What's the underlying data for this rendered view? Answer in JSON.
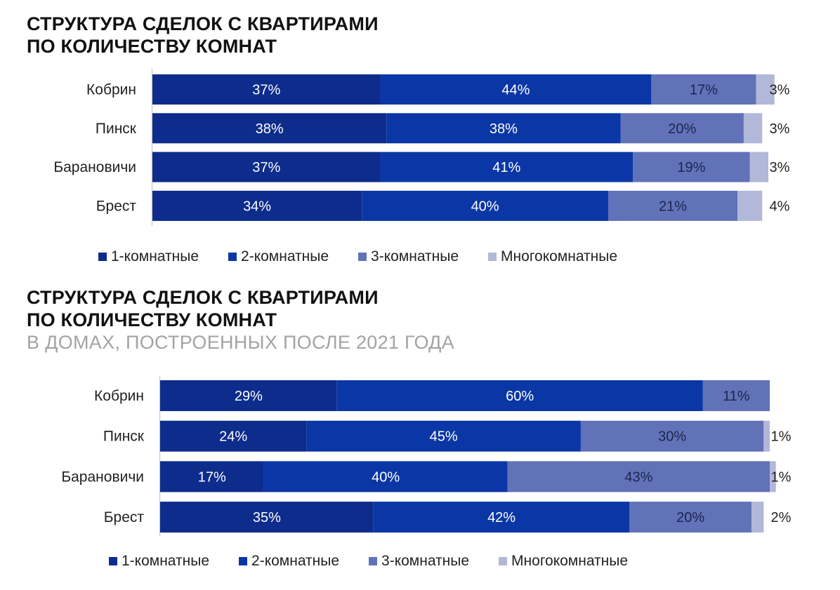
{
  "colors": {
    "one_room": "#0d2c8c",
    "two_room": "#0b37a6",
    "three_room": "#6272b8",
    "multi_room": "#b1b8d9",
    "axis": "#cccccc"
  },
  "chart_data": [
    {
      "type": "bar",
      "orientation": "horizontal",
      "stacked": true,
      "title_lines": [
        "СТРУКТУРА СДЕЛОК С КВАРТИРАМИ",
        "ПО КОЛИЧЕСТВУ КОМНАТ"
      ],
      "subtitle": "",
      "categories": [
        "Кобрин",
        "Пинск",
        "Барановичи",
        "Брест"
      ],
      "series": [
        {
          "name": "1-комнатные",
          "values": [
            37,
            38,
            37,
            34
          ],
          "labels": [
            "37%",
            "38%",
            "37%",
            "34%"
          ]
        },
        {
          "name": "2-комнатные",
          "values": [
            44,
            38,
            41,
            40
          ],
          "labels": [
            "44%",
            "38%",
            "41%",
            "40%"
          ]
        },
        {
          "name": "3-комнатные",
          "values": [
            17,
            20,
            19,
            21
          ],
          "labels": [
            "17%",
            "20%",
            "19%",
            "21%"
          ]
        },
        {
          "name": "Многокомнатные",
          "values": [
            3,
            3,
            3,
            4
          ],
          "labels": [
            "3%",
            "3%",
            "3%",
            "4%"
          ]
        }
      ],
      "xlim": [
        0,
        100
      ],
      "legend": "bottom",
      "grid": false
    },
    {
      "type": "bar",
      "orientation": "horizontal",
      "stacked": true,
      "title_lines": [
        "СТРУКТУРА СДЕЛОК С КВАРТИРАМИ",
        "ПО КОЛИЧЕСТВУ КОМНАТ"
      ],
      "subtitle": "В ДОМАХ, ПОСТРОЕННЫХ ПОСЛЕ 2021 ГОДА",
      "categories": [
        "Кобрин",
        "Пинск",
        "Барановичи",
        "Брест"
      ],
      "series": [
        {
          "name": "1-комнатные",
          "values": [
            29,
            24,
            17,
            35
          ],
          "labels": [
            "29%",
            "24%",
            "17%",
            "35%"
          ]
        },
        {
          "name": "2-комнатные",
          "values": [
            60,
            45,
            40,
            42
          ],
          "labels": [
            "60%",
            "45%",
            "40%",
            "42%"
          ]
        },
        {
          "name": "3-комнатные",
          "values": [
            11,
            30,
            43,
            20
          ],
          "labels": [
            "11%",
            "30%",
            "43%",
            "20%"
          ]
        },
        {
          "name": "Многокомнатные",
          "values": [
            0,
            1,
            1,
            2
          ],
          "labels": [
            "",
            "1%",
            "1%",
            "2%"
          ]
        }
      ],
      "xlim": [
        0,
        100
      ],
      "legend": "bottom",
      "grid": false
    }
  ]
}
